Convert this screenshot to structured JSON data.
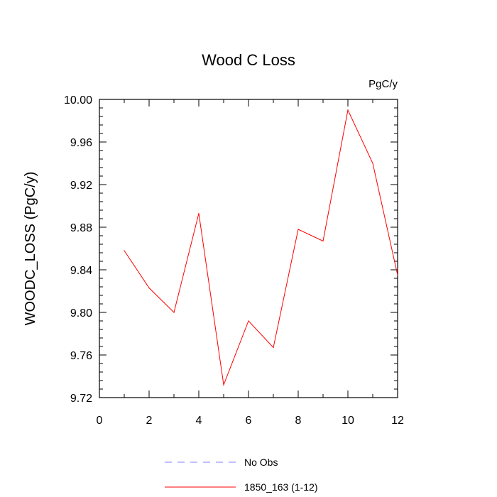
{
  "chart_data": {
    "type": "line",
    "title": "Wood C Loss",
    "units_label": "PgC/y",
    "xlabel": "",
    "ylabel": "WOODC_LOSS  (PgC/y)",
    "xlim": [
      0,
      12
    ],
    "ylim": [
      9.72,
      10.0
    ],
    "xticks": [
      0,
      2,
      4,
      6,
      8,
      10,
      12
    ],
    "xtick_labels": [
      "0",
      "2",
      "4",
      "6",
      "8",
      "10",
      "12"
    ],
    "yticks": [
      9.72,
      9.76,
      9.8,
      9.84,
      9.88,
      9.92,
      9.96,
      10.0
    ],
    "ytick_labels": [
      "9.72",
      "9.76",
      "9.80",
      "9.84",
      "9.88",
      "9.92",
      "9.96",
      "10.00"
    ],
    "grid": false,
    "legend_position": "bottom",
    "series": [
      {
        "name": "1850_163 (1-12)",
        "color": "#ff0000",
        "dash": "solid",
        "x": [
          1,
          2,
          3,
          4,
          5,
          6,
          7,
          8,
          9,
          10,
          11,
          12
        ],
        "y": [
          9.858,
          9.823,
          9.8,
          9.893,
          9.732,
          9.792,
          9.767,
          9.878,
          9.867,
          9.99,
          9.94,
          9.835
        ]
      }
    ],
    "legend": [
      {
        "label": "No Obs",
        "color": "#8080ff",
        "dash": "dashed"
      },
      {
        "label": "1850_163 (1-12)",
        "color": "#ff0000",
        "dash": "solid"
      }
    ]
  }
}
